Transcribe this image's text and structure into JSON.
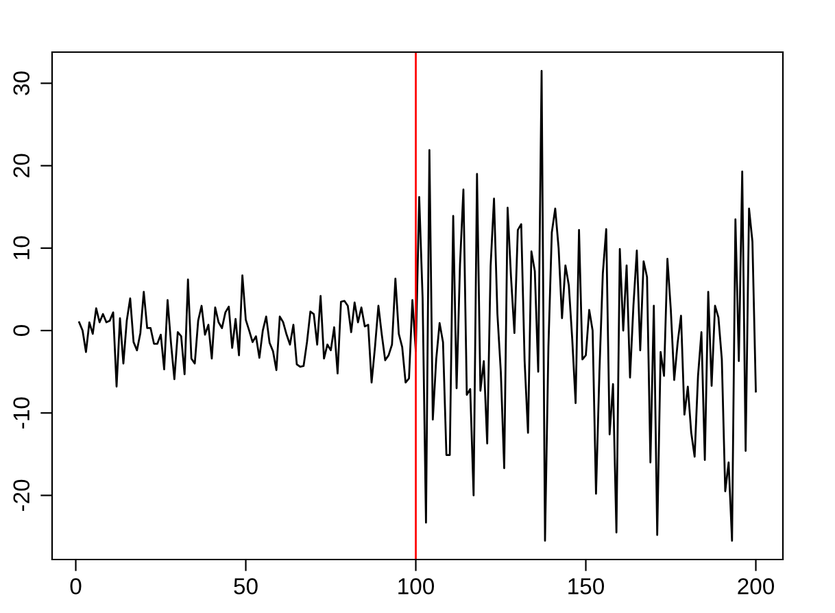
{
  "chart_data": {
    "type": "line",
    "x": [
      1,
      2,
      3,
      4,
      5,
      6,
      7,
      8,
      9,
      10,
      11,
      12,
      13,
      14,
      15,
      16,
      17,
      18,
      19,
      20,
      21,
      22,
      23,
      24,
      25,
      26,
      27,
      28,
      29,
      30,
      31,
      32,
      33,
      34,
      35,
      36,
      37,
      38,
      39,
      40,
      41,
      42,
      43,
      44,
      45,
      46,
      47,
      48,
      49,
      50,
      51,
      52,
      53,
      54,
      55,
      56,
      57,
      58,
      59,
      60,
      61,
      62,
      63,
      64,
      65,
      66,
      67,
      68,
      69,
      70,
      71,
      72,
      73,
      74,
      75,
      76,
      77,
      78,
      79,
      80,
      81,
      82,
      83,
      84,
      85,
      86,
      87,
      88,
      89,
      90,
      91,
      92,
      93,
      94,
      95,
      96,
      97,
      98,
      99,
      100,
      101,
      102,
      103,
      104,
      105,
      106,
      107,
      108,
      109,
      110,
      111,
      112,
      113,
      114,
      115,
      116,
      117,
      118,
      119,
      120,
      121,
      122,
      123,
      124,
      125,
      126,
      127,
      128,
      129,
      130,
      131,
      132,
      133,
      134,
      135,
      136,
      137,
      138,
      139,
      140,
      141,
      142,
      143,
      144,
      145,
      146,
      147,
      148,
      149,
      150,
      151,
      152,
      153,
      154,
      155,
      156,
      157,
      158,
      159,
      160,
      161,
      162,
      163,
      164,
      165,
      166,
      167,
      168,
      169,
      170,
      171,
      172,
      173,
      174,
      175,
      176,
      177,
      178,
      179,
      180,
      181,
      182,
      183,
      184,
      185,
      186,
      187,
      188,
      189,
      190,
      191,
      192,
      193,
      194,
      195,
      196,
      197,
      198,
      199,
      200
    ],
    "series": [
      {
        "color": "#000000",
        "values": [
          1,
          0,
          -2.6,
          1,
          -0.4,
          2.7,
          1,
          2,
          1,
          1.2,
          2.2,
          -6.8,
          1.5,
          -4,
          1.2,
          3.9,
          -1.4,
          -2.4,
          -0.3,
          4.7,
          0.3,
          0.3,
          -1.6,
          -1.6,
          -0.5,
          -4.7,
          3.7,
          -1.5,
          -5.9,
          -0.2,
          -0.7,
          -5.3,
          6.2,
          -3.4,
          -4,
          1.2,
          3,
          -0.5,
          0.7,
          -3.4,
          2.8,
          1,
          0.3,
          2.2,
          2.9,
          -2.1,
          1.4,
          -3,
          6.7,
          1.3,
          0,
          -1.4,
          -0.7,
          -3.3,
          0,
          1.7,
          -1.5,
          -2.5,
          -4.8,
          1.7,
          1,
          -0.5,
          -1.7,
          0.7,
          -4.1,
          -4.4,
          -4.3,
          -1.4,
          2.3,
          2,
          -1.7,
          4.2,
          -3.4,
          -1.7,
          -2.4,
          0.4,
          -5.2,
          3.5,
          3.6,
          3,
          -0.2,
          3.4,
          1,
          2.8,
          0.5,
          0.7,
          -6.3,
          -2,
          3,
          -0.5,
          -3.6,
          -3,
          -1.7,
          6.3,
          -0.4,
          -2,
          -6.3,
          -5.8,
          3.7,
          -2.5,
          16.2,
          4,
          -23.3,
          21.9,
          -10.8,
          -3.5,
          0.9,
          -1.4,
          -15.1,
          -15.1,
          13.9,
          -7,
          8,
          17.1,
          -7.8,
          -7.1,
          -20,
          19,
          -7.3,
          -3.7,
          -13.7,
          7.8,
          16,
          2,
          -5,
          -16.7,
          14.9,
          6.5,
          -0.3,
          12.2,
          12.9,
          -3.7,
          -12.4,
          9.6,
          7.2,
          -5,
          31.5,
          -25.5,
          -2,
          11.9,
          14.8,
          10,
          1.5,
          7.9,
          5.5,
          -1,
          -8.8,
          12.2,
          -3.5,
          -3,
          2.5,
          0,
          -19.8,
          -5,
          6.9,
          12.3,
          -12.6,
          -6.5,
          -24.5,
          9.9,
          0,
          7.9,
          -5.7,
          3,
          9.7,
          -2.4,
          8.4,
          6.5,
          -16,
          3,
          -24.8,
          -2.6,
          -5.5,
          8.7,
          2.5,
          -6,
          -1.5,
          1.8,
          -10.2,
          -6.8,
          -12.4,
          -15.3,
          -5.5,
          -0.2,
          -15.7,
          4.7,
          -6.7,
          3,
          1.6,
          -3.5,
          -19.5,
          -16,
          -25.5,
          13.5,
          -3.7,
          19.3,
          -14.6,
          14.8,
          10.8,
          -7.4
        ]
      }
    ],
    "xlim": [
      -6.96,
      207.96
    ],
    "ylim": [
      -27.78,
      33.78
    ],
    "xticks": [
      0,
      50,
      100,
      150,
      200
    ],
    "yticks": [
      -20,
      -10,
      0,
      10,
      20,
      30
    ],
    "ref_lines": [
      {
        "axis": "x",
        "value": 100,
        "color": "#ff0000"
      }
    ],
    "grid": false,
    "legend": false
  }
}
